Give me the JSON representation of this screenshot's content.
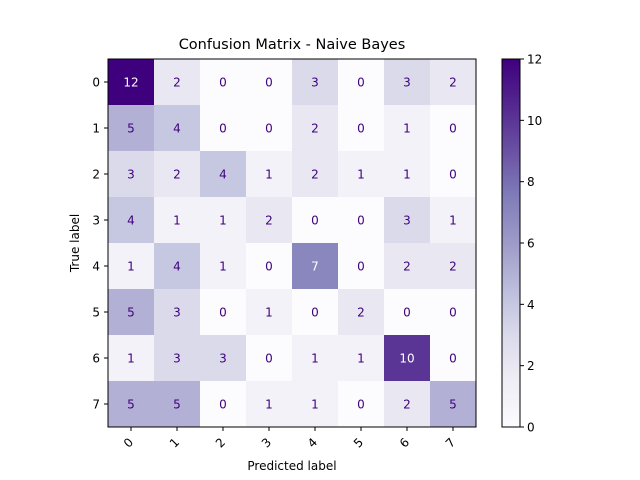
{
  "chart_data": {
    "type": "heatmap",
    "title": "Confusion Matrix - Naive Bayes",
    "xlabel": "Predicted label",
    "ylabel": "True label",
    "x_categories": [
      "0",
      "1",
      "2",
      "3",
      "4",
      "5",
      "6",
      "7"
    ],
    "y_categories": [
      "0",
      "1",
      "2",
      "3",
      "4",
      "5",
      "6",
      "7"
    ],
    "values": [
      [
        12,
        2,
        0,
        0,
        3,
        0,
        3,
        2
      ],
      [
        5,
        4,
        0,
        0,
        2,
        0,
        1,
        0
      ],
      [
        3,
        2,
        4,
        1,
        2,
        1,
        1,
        0
      ],
      [
        4,
        1,
        1,
        2,
        0,
        0,
        3,
        1
      ],
      [
        1,
        4,
        1,
        0,
        7,
        0,
        2,
        2
      ],
      [
        5,
        3,
        0,
        1,
        0,
        2,
        0,
        0
      ],
      [
        1,
        3,
        3,
        0,
        1,
        1,
        10,
        0
      ],
      [
        5,
        5,
        0,
        1,
        1,
        0,
        2,
        5
      ]
    ],
    "colormap": "Purples",
    "color_range": [
      0,
      12
    ],
    "colorbar_ticks": [
      "0",
      "2",
      "4",
      "6",
      "8",
      "10",
      "12"
    ],
    "grid": false,
    "legend": "colorbar-right"
  }
}
